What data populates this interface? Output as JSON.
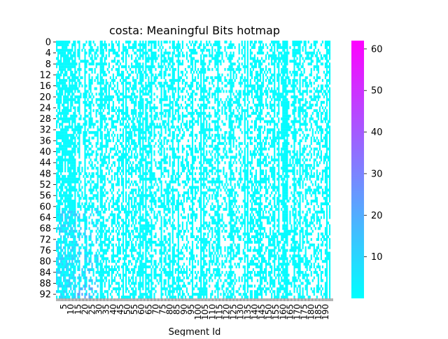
{
  "chart_data": {
    "type": "heatmap",
    "title": "costa: Meaningful Bits hotmap",
    "xlabel": "Segment Id",
    "ylabel": "",
    "n_rows": 94,
    "n_cols": 196,
    "x_tick_labels": [
      "5",
      "10",
      "15",
      "20",
      "25",
      "30",
      "35",
      "40",
      "45",
      "50",
      "55",
      "60",
      "65",
      "70",
      "75",
      "80",
      "85",
      "90",
      "95",
      "100",
      "105",
      "110",
      "115",
      "120",
      "125",
      "130",
      "135",
      "140",
      "145",
      "150",
      "155",
      "160",
      "165",
      "170",
      "175",
      "180",
      "185",
      "190"
    ],
    "y_tick_labels": [
      "0",
      "4",
      "8",
      "12",
      "16",
      "20",
      "24",
      "28",
      "32",
      "36",
      "40",
      "44",
      "48",
      "52",
      "56",
      "60",
      "64",
      "68",
      "72",
      "76",
      "80",
      "84",
      "88",
      "92"
    ],
    "colorbar": {
      "min": 0,
      "max": 62,
      "ticks": [
        "10",
        "20",
        "30",
        "40",
        "50",
        "60"
      ],
      "colors": [
        "#00ffff",
        "#ff00ff"
      ]
    },
    "cell_levels": {
      "dominant_value": 1,
      "secondary_value": 12,
      "max_value": 62
    }
  }
}
